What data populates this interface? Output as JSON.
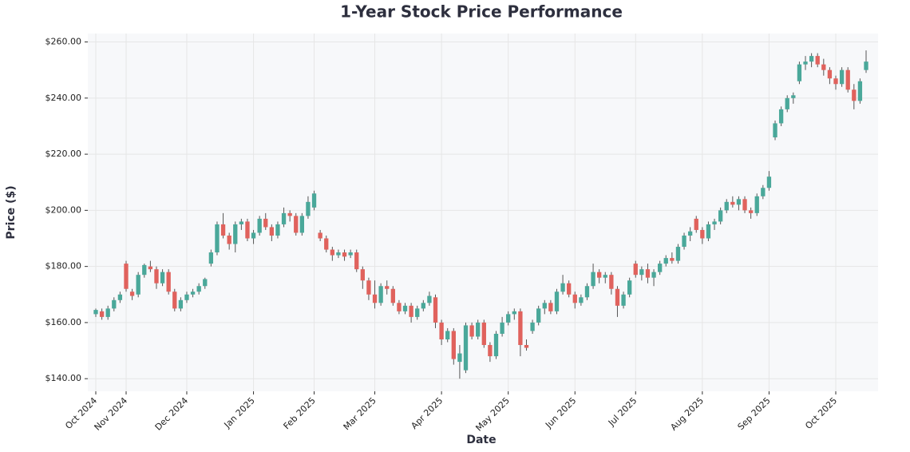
{
  "chart_data": {
    "type": "candlestick",
    "title": "1-Year Stock Price Performance",
    "xlabel": "Date",
    "ylabel": "Price ($)",
    "ylim": [
      135.5,
      263
    ],
    "grid": true,
    "up_color": "#4aa89a",
    "down_color": "#e0625d",
    "yticks": [
      {
        "value": 140,
        "label": "$140.00"
      },
      {
        "value": 160,
        "label": "$160.00"
      },
      {
        "value": 180,
        "label": "$180.00"
      },
      {
        "value": 200,
        "label": "$200.00"
      },
      {
        "value": 220,
        "label": "$220.00"
      },
      {
        "value": 240,
        "label": "$240.00"
      },
      {
        "value": 260,
        "label": "$260.00"
      }
    ],
    "months": [
      {
        "label": "Oct 2024",
        "candles": [
          [
            163,
            165,
            162,
            164.5
          ],
          [
            164,
            165,
            161,
            162
          ],
          [
            162,
            166,
            161,
            165
          ],
          [
            165,
            169,
            164,
            168
          ],
          [
            168,
            171,
            167,
            170
          ]
        ]
      },
      {
        "label": "Nov 2024",
        "candles": [
          [
            181,
            182,
            171,
            172
          ],
          [
            171,
            172,
            168,
            169.5
          ],
          [
            170,
            178,
            169,
            177
          ],
          [
            177,
            181,
            176,
            180.5
          ],
          [
            180,
            182,
            178,
            179
          ],
          [
            179,
            180,
            172,
            174
          ],
          [
            174,
            179,
            173,
            178
          ],
          [
            178,
            179,
            170,
            171
          ],
          [
            171,
            172,
            164,
            165
          ],
          [
            165,
            169,
            164,
            168
          ]
        ]
      },
      {
        "label": "Dec 2024",
        "candles": [
          [
            168,
            171,
            167,
            170
          ],
          [
            170,
            172,
            169,
            171
          ],
          [
            171,
            174,
            170,
            173
          ],
          [
            173,
            176,
            172,
            175.5
          ],
          [
            181,
            186,
            180,
            185
          ],
          [
            185,
            196,
            184,
            195
          ],
          [
            195,
            199,
            190,
            191
          ],
          [
            191,
            192,
            186,
            188
          ],
          [
            188,
            196,
            185,
            195
          ],
          [
            195,
            197,
            193,
            196
          ],
          [
            196,
            197,
            189,
            190
          ]
        ]
      },
      {
        "label": "Jan 2025",
        "candles": [
          [
            190,
            193,
            188,
            192
          ],
          [
            192,
            198,
            191,
            197
          ],
          [
            197,
            199,
            193,
            194
          ],
          [
            194,
            195,
            189,
            191
          ],
          [
            191,
            196,
            190,
            195
          ],
          [
            195,
            201,
            194,
            199
          ],
          [
            199,
            200,
            196,
            198
          ],
          [
            198,
            199,
            191,
            192
          ],
          [
            192,
            199,
            191,
            198
          ],
          [
            198,
            205,
            197,
            203
          ]
        ]
      },
      {
        "label": "Feb 2025",
        "candles": [
          [
            201,
            207,
            200,
            206
          ],
          [
            192,
            193,
            189,
            190
          ],
          [
            190,
            191,
            185,
            186
          ],
          [
            186,
            187,
            182,
            184
          ],
          [
            184,
            186,
            183,
            185
          ],
          [
            185,
            186,
            182,
            183.5
          ],
          [
            184,
            186,
            183,
            185
          ],
          [
            185,
            186,
            178,
            179
          ],
          [
            179,
            180,
            172,
            175
          ],
          [
            175,
            176,
            168,
            170
          ]
        ]
      },
      {
        "label": "Mar 2025",
        "candles": [
          [
            170,
            175,
            165,
            167
          ],
          [
            167,
            174,
            166,
            173
          ],
          [
            173,
            175,
            170,
            172
          ],
          [
            172,
            173,
            166,
            167
          ],
          [
            167,
            168,
            163,
            164
          ],
          [
            164,
            167,
            163,
            166
          ],
          [
            166,
            167,
            160,
            162
          ],
          [
            162,
            166,
            161,
            165
          ],
          [
            165,
            168,
            164,
            167
          ],
          [
            167,
            171,
            166,
            169.5
          ],
          [
            169,
            170,
            158,
            160
          ]
        ]
      },
      {
        "label": "Apr 2025",
        "candles": [
          [
            160,
            161,
            152,
            154
          ],
          [
            154,
            158,
            153,
            157
          ],
          [
            157,
            158,
            145,
            147
          ],
          [
            146,
            152,
            140,
            149
          ],
          [
            143,
            160,
            142,
            159
          ],
          [
            159,
            160,
            154,
            155
          ],
          [
            155,
            161,
            154,
            160
          ],
          [
            160,
            161,
            151,
            152
          ],
          [
            152,
            153,
            146,
            148
          ],
          [
            148,
            157,
            147,
            156
          ],
          [
            156,
            162,
            155,
            160
          ]
        ]
      },
      {
        "label": "May 2025",
        "candles": [
          [
            160,
            164,
            159,
            163
          ],
          [
            163,
            165,
            161,
            164
          ],
          [
            164,
            165,
            148,
            152
          ],
          [
            152,
            154,
            150,
            151
          ],
          [
            157,
            161,
            156,
            160
          ],
          [
            160,
            166,
            159,
            165
          ],
          [
            165,
            168,
            163,
            167
          ],
          [
            167,
            168,
            163,
            164
          ],
          [
            164,
            172,
            163,
            171
          ],
          [
            171,
            177,
            170,
            174
          ],
          [
            174,
            175,
            169,
            170
          ]
        ]
      },
      {
        "label": "Jun 2025",
        "candles": [
          [
            170,
            171,
            165,
            167
          ],
          [
            167,
            170,
            166,
            169
          ],
          [
            169,
            174,
            168,
            173
          ],
          [
            173,
            181,
            172,
            178
          ],
          [
            178,
            179,
            174,
            176
          ],
          [
            176,
            178,
            174,
            177
          ],
          [
            177,
            178,
            170,
            172
          ],
          [
            172,
            173,
            162,
            166
          ],
          [
            166,
            171,
            165,
            170
          ],
          [
            170,
            176,
            169,
            175
          ]
        ]
      },
      {
        "label": "Jul 2025",
        "candles": [
          [
            181,
            182,
            176,
            177
          ],
          [
            177,
            180,
            175,
            179
          ],
          [
            179,
            181,
            174,
            176
          ],
          [
            176,
            179,
            173,
            178
          ],
          [
            178,
            182,
            177,
            181
          ],
          [
            181,
            184,
            180,
            183
          ],
          [
            183,
            185,
            181,
            182
          ],
          [
            182,
            188,
            181,
            187
          ],
          [
            187,
            192,
            186,
            191
          ],
          [
            191,
            194,
            189,
            192.5
          ],
          [
            197,
            198,
            192,
            193
          ]
        ]
      },
      {
        "label": "Aug 2025",
        "candles": [
          [
            193,
            194,
            188,
            190
          ],
          [
            190,
            196,
            189,
            195
          ],
          [
            195,
            197,
            193,
            196
          ],
          [
            196,
            201,
            195,
            200
          ],
          [
            200,
            204,
            199,
            203
          ],
          [
            203,
            205,
            201,
            202
          ],
          [
            202,
            205,
            200,
            204
          ],
          [
            204,
            205,
            199,
            200
          ],
          [
            200,
            201,
            197,
            199
          ],
          [
            199,
            206,
            198,
            205
          ],
          [
            205,
            209,
            204,
            208
          ]
        ]
      },
      {
        "label": "Sep 2025",
        "candles": [
          [
            208,
            214,
            207,
            212
          ],
          [
            226,
            232,
            225,
            231
          ],
          [
            231,
            237,
            230,
            236
          ],
          [
            236,
            241,
            235,
            240
          ],
          [
            240,
            242,
            238,
            241
          ],
          [
            246,
            253,
            245,
            252
          ],
          [
            252,
            255,
            250,
            253
          ],
          [
            253,
            256,
            251,
            255
          ],
          [
            255,
            256,
            251,
            252
          ],
          [
            252,
            254,
            248,
            250
          ],
          [
            250,
            251,
            245,
            247
          ]
        ]
      },
      {
        "label": "Oct 2025",
        "candles": [
          [
            247,
            248,
            243,
            245
          ],
          [
            245,
            251,
            244,
            250
          ],
          [
            250,
            251,
            242,
            243
          ],
          [
            243,
            245,
            236,
            239
          ],
          [
            239,
            247,
            238,
            246
          ],
          [
            250,
            257,
            249,
            253
          ]
        ]
      }
    ]
  }
}
